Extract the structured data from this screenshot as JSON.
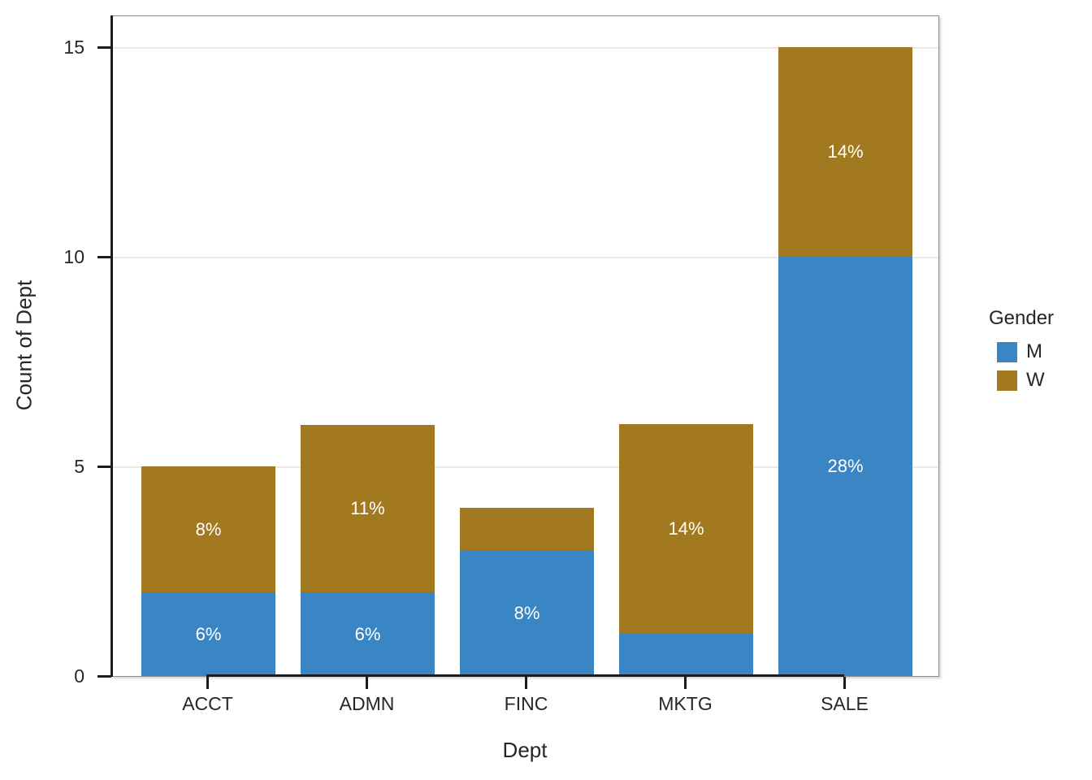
{
  "chart_data": {
    "type": "bar",
    "stacked": true,
    "title": "",
    "xlabel": "Dept",
    "ylabel": "Count of Dept",
    "categories": [
      "ACCT",
      "ADMN",
      "FINC",
      "MKTG",
      "SALE"
    ],
    "series": [
      {
        "name": "M",
        "color": "#3A86C5",
        "values": [
          2,
          2,
          3,
          1,
          10
        ],
        "percent_labels": [
          "6%",
          "6%",
          "8%",
          null,
          "28%"
        ]
      },
      {
        "name": "W",
        "color": "#A3791F",
        "values": [
          3,
          4,
          1,
          5,
          5
        ],
        "percent_labels": [
          "8%",
          "11%",
          null,
          "14%",
          "14%"
        ]
      }
    ],
    "totals": [
      5,
      6,
      4,
      6,
      15
    ],
    "yticks": [
      0,
      5,
      10,
      15
    ],
    "ylim": [
      0,
      15.76
    ],
    "grid": "horizontal",
    "legend": {
      "title": "Gender",
      "position": "right",
      "entries": [
        "M",
        "W"
      ]
    },
    "label_text_color": "#FFFFFF",
    "axis_color": "#1C1C1C",
    "gridline_color": "#EDEAE6"
  }
}
